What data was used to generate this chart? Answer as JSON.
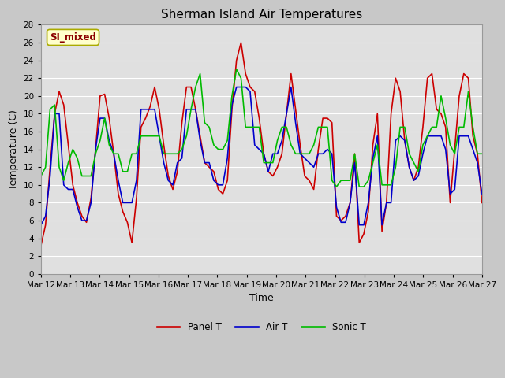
{
  "title": "Sherman Island Air Temperatures",
  "xlabel": "Time",
  "ylabel": "Temperature (C)",
  "ylim": [
    0,
    28
  ],
  "label_box_text": "SI_mixed",
  "fig_bg_color": "#c8c8c8",
  "plot_bg_color": "#e0e0e0",
  "x_tick_labels": [
    "Mar 12",
    "Mar 13",
    "Mar 14",
    "Mar 15",
    "Mar 16",
    "Mar 17",
    "Mar 18",
    "Mar 19",
    "Mar 20",
    "Mar 21",
    "Mar 22",
    "Mar 23",
    "Mar 24",
    "Mar 25",
    "Mar 26",
    "Mar 27"
  ],
  "panel_T": [
    3.2,
    5.5,
    12.0,
    18.0,
    20.5,
    19.0,
    14.5,
    10.0,
    8.0,
    6.5,
    5.8,
    8.5,
    14.0,
    20.0,
    20.2,
    17.5,
    13.5,
    9.0,
    7.0,
    5.8,
    3.5,
    8.5,
    16.5,
    17.5,
    18.8,
    21.0,
    18.5,
    14.5,
    11.0,
    9.5,
    11.5,
    17.0,
    21.0,
    21.0,
    18.5,
    15.5,
    12.5,
    12.0,
    11.5,
    9.5,
    9.0,
    10.5,
    18.5,
    24.0,
    26.0,
    22.5,
    21.0,
    20.5,
    17.5,
    13.5,
    11.5,
    11.0,
    12.0,
    13.5,
    18.0,
    22.5,
    18.5,
    14.5,
    11.0,
    10.5,
    9.5,
    14.0,
    17.5,
    17.5,
    17.0,
    6.5,
    6.0,
    6.5,
    8.0,
    13.5,
    3.5,
    4.5,
    7.0,
    14.5,
    18.0,
    4.8,
    8.0,
    18.0,
    22.0,
    20.5,
    15.0,
    12.0,
    10.5,
    12.0,
    16.5,
    22.0,
    22.5,
    18.5,
    18.0,
    16.5,
    8.0,
    14.0,
    20.0,
    22.5,
    22.0,
    15.5,
    13.5,
    8.0
  ],
  "air_T": [
    5.5,
    6.5,
    11.0,
    18.0,
    18.0,
    10.0,
    9.5,
    9.5,
    7.5,
    6.0,
    6.0,
    8.0,
    14.0,
    17.5,
    17.5,
    15.0,
    13.5,
    10.5,
    8.0,
    8.0,
    8.0,
    10.5,
    18.5,
    18.5,
    18.5,
    18.5,
    15.5,
    12.5,
    10.5,
    10.0,
    12.5,
    13.0,
    18.5,
    18.5,
    18.5,
    15.0,
    12.5,
    12.5,
    10.5,
    10.0,
    10.0,
    13.0,
    19.0,
    21.0,
    21.0,
    21.0,
    20.5,
    14.5,
    14.0,
    13.5,
    11.5,
    13.5,
    13.5,
    15.0,
    18.0,
    21.0,
    17.0,
    13.5,
    13.0,
    12.5,
    12.0,
    13.5,
    13.5,
    14.0,
    13.5,
    7.5,
    5.8,
    5.8,
    8.0,
    12.5,
    5.5,
    5.5,
    8.0,
    13.0,
    15.5,
    5.5,
    8.0,
    8.0,
    15.0,
    15.5,
    15.0,
    12.0,
    10.5,
    11.0,
    13.5,
    15.5,
    15.5,
    15.5,
    15.5,
    14.0,
    9.0,
    9.5,
    15.5,
    15.5,
    15.5,
    14.0,
    12.5,
    9.0
  ],
  "sonic_T": [
    11.0,
    12.0,
    18.5,
    19.0,
    12.0,
    10.5,
    12.5,
    14.0,
    13.0,
    11.0,
    11.0,
    11.0,
    13.5,
    15.0,
    17.5,
    14.5,
    13.5,
    13.5,
    11.5,
    11.5,
    13.5,
    13.5,
    15.5,
    15.5,
    15.5,
    15.5,
    15.5,
    13.5,
    13.5,
    13.5,
    13.5,
    14.0,
    15.5,
    18.5,
    21.0,
    22.5,
    17.0,
    16.5,
    14.5,
    14.0,
    14.0,
    15.0,
    20.0,
    23.0,
    22.0,
    16.5,
    16.5,
    16.5,
    16.5,
    12.5,
    12.5,
    12.5,
    15.0,
    16.5,
    16.5,
    14.5,
    13.5,
    13.5,
    13.5,
    13.5,
    14.5,
    16.5,
    16.5,
    16.5,
    10.5,
    9.8,
    10.5,
    10.5,
    10.5,
    13.5,
    9.8,
    9.8,
    10.5,
    12.5,
    14.5,
    10.0,
    10.0,
    10.0,
    12.0,
    16.5,
    16.5,
    13.5,
    12.5,
    11.5,
    14.5,
    15.5,
    16.5,
    16.5,
    20.0,
    17.5,
    14.5,
    13.5,
    16.5,
    16.5,
    20.5,
    16.5,
    13.5,
    13.5
  ],
  "line_colors": {
    "panel_T": "#cc0000",
    "air_T": "#0000cc",
    "sonic_T": "#00bb00"
  },
  "line_width": 1.2,
  "legend_labels": [
    "Panel T",
    "Air T",
    "Sonic T"
  ],
  "title_fontsize": 11,
  "axis_label_fontsize": 9,
  "tick_fontsize": 7.5
}
